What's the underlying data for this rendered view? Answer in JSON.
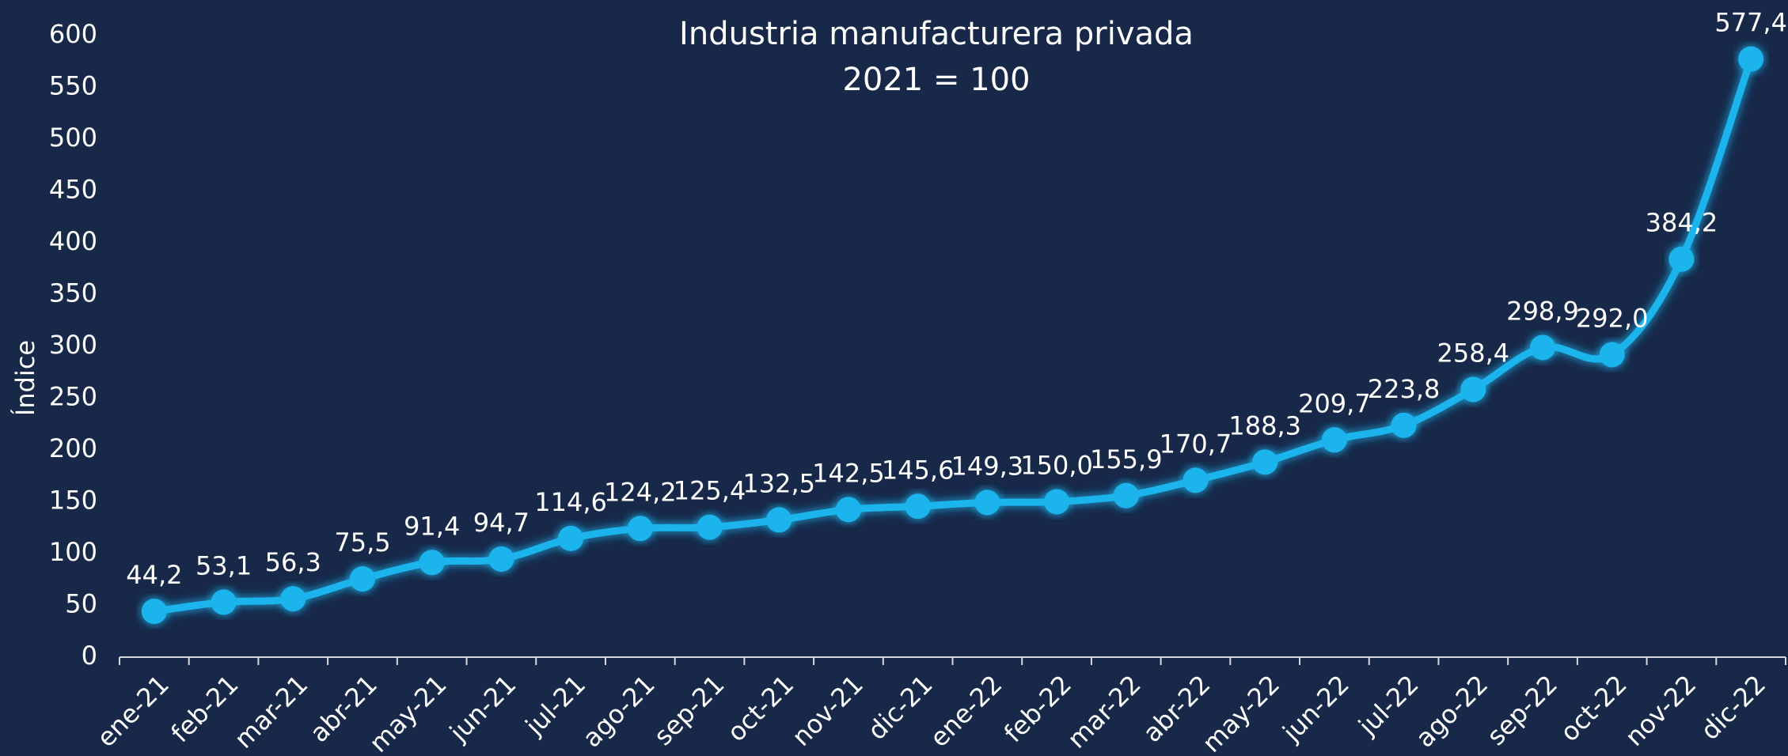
{
  "chart_data": {
    "type": "line",
    "subtitle": [
      "Industria manufacturera privada",
      "2021 = 100"
    ],
    "y_label": "Índice",
    "categories": [
      "ene-21",
      "feb-21",
      "mar-21",
      "abr-21",
      "may-21",
      "jun-21",
      "jul-21",
      "ago-21",
      "sep-21",
      "oct-21",
      "nov-21",
      "dic-21",
      "ene-22",
      "feb-22",
      "mar-22",
      "abr-22",
      "may-22",
      "jun-22",
      "jul-22",
      "ago-22",
      "sep-22",
      "oct-22",
      "nov-22",
      "dic-22"
    ],
    "values": [
      44.2,
      53.1,
      56.3,
      75.5,
      91.4,
      94.7,
      114.6,
      124.2,
      125.4,
      132.5,
      142.5,
      145.6,
      149.3,
      150.0,
      155.9,
      170.7,
      188.3,
      209.7,
      223.8,
      258.4,
      298.9,
      292.0,
      384.2,
      577.4
    ],
    "value_labels": [
      "44,2",
      "53,1",
      "56,3",
      "75,5",
      "91,4",
      "94,7",
      "114,6",
      "124,2",
      "125,4",
      "132,5",
      "142,5",
      "145,6",
      "149,3",
      "150,0",
      "155,9",
      "170,7",
      "188,3",
      "209,7",
      "223,8",
      "258,4",
      "298,9",
      "292,0",
      "384,2",
      "577,4"
    ],
    "color": "#1eb4ec",
    "ylim": [
      0,
      600
    ],
    "yticks": [
      0,
      50,
      100,
      150,
      200,
      250,
      300,
      350,
      400,
      450,
      500,
      550,
      600
    ]
  }
}
